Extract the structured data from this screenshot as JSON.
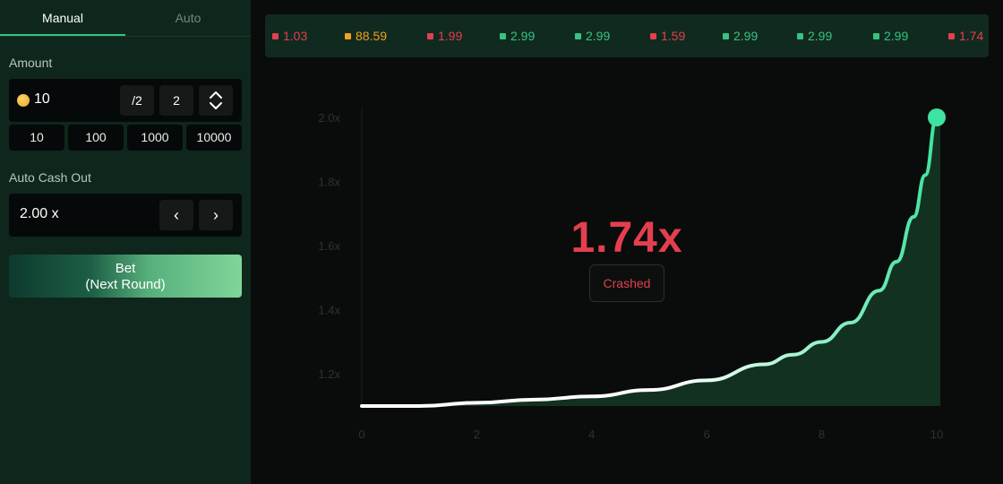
{
  "tabs": {
    "manual": "Manual",
    "auto": "Auto"
  },
  "amount": {
    "label": "Amount",
    "value": "10",
    "half_label": "/2",
    "double_label": "2",
    "quick": [
      "10",
      "100",
      "1000",
      "10000"
    ]
  },
  "auto_cash_out": {
    "label": "Auto Cash Out",
    "value": "2.00 x",
    "dec_glyph": "‹",
    "inc_glyph": "›"
  },
  "bet_button": {
    "line1": "Bet",
    "line2": "(Next Round)"
  },
  "history": [
    {
      "value": "1.03",
      "status": "red"
    },
    {
      "value": "88.59",
      "status": "orange"
    },
    {
      "value": "1.99",
      "status": "red"
    },
    {
      "value": "2.99",
      "status": "green"
    },
    {
      "value": "2.99",
      "status": "green"
    },
    {
      "value": "1.59",
      "status": "red"
    },
    {
      "value": "2.99",
      "status": "green"
    },
    {
      "value": "2.99",
      "status": "green"
    },
    {
      "value": "2.99",
      "status": "green"
    },
    {
      "value": "1.74",
      "status": "red"
    }
  ],
  "round": {
    "multiplier": "1.74x",
    "status": "Crashed"
  },
  "colors": {
    "red": "#e43f4f",
    "green": "#35c383",
    "orange": "#f0a21b",
    "curve_end": "#3de3a0"
  },
  "chart_data": {
    "type": "area",
    "x_ticks": [
      "0",
      "2",
      "4",
      "6",
      "8",
      "10"
    ],
    "y_ticks": [
      "1.2x",
      "1.4x",
      "1.6x",
      "1.8x",
      "2.0x"
    ],
    "xlim": [
      0,
      10
    ],
    "ylim": [
      1.1,
      2.0
    ],
    "series": [
      {
        "x": [
          0,
          1,
          2,
          3,
          4,
          5,
          6,
          7,
          7.5,
          8,
          8.5,
          9,
          9.3,
          9.6,
          9.8,
          10
        ],
        "values": [
          1.1,
          1.1,
          1.11,
          1.12,
          1.13,
          1.15,
          1.18,
          1.23,
          1.26,
          1.3,
          1.36,
          1.46,
          1.55,
          1.69,
          1.82,
          2.0
        ]
      }
    ],
    "grid": false
  }
}
